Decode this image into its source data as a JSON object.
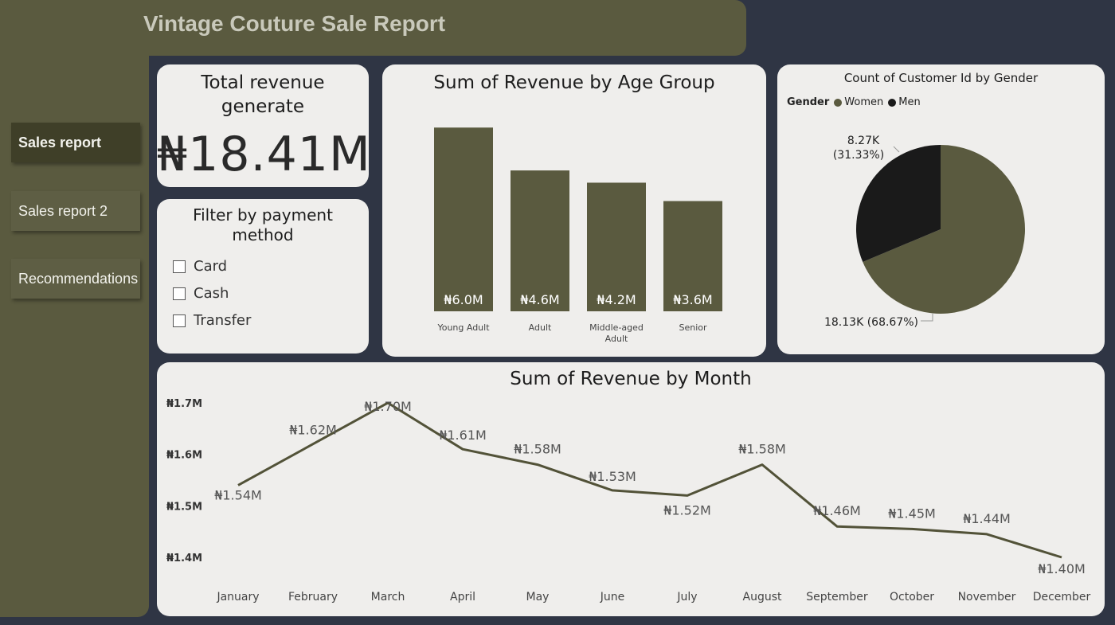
{
  "header": {
    "title": "Vintage Couture Sale Report"
  },
  "nav": [
    {
      "label": "Sales report",
      "active": true
    },
    {
      "label": "Sales report 2",
      "active": false
    },
    {
      "label": "Recommendations",
      "active": false
    }
  ],
  "kpi": {
    "label_line1": "Total revenue",
    "label_line2": "generate",
    "value": "₦18.41M"
  },
  "filter": {
    "title_line1": "Filter by payment",
    "title_line2": "method",
    "options": [
      "Card",
      "Cash",
      "Transfer"
    ]
  },
  "age_chart": {
    "title": "Sum of Revenue by Age Group",
    "chart_data": {
      "type": "bar",
      "categories": [
        "Young Adult",
        "Adult",
        "Middle-aged Adult",
        "Senior"
      ],
      "category_lines": [
        [
          "Young Adult"
        ],
        [
          "Adult"
        ],
        [
          "Middle-aged",
          "Adult"
        ],
        [
          "Senior"
        ]
      ],
      "values": [
        6.0,
        4.6,
        4.2,
        3.6
      ],
      "data_labels": [
        "₦6.0M",
        "₦4.6M",
        "₦4.2M",
        "₦3.6M"
      ],
      "ylim": [
        0,
        6.5
      ],
      "color": "#5a5a3f"
    }
  },
  "gender_chart": {
    "title": "Count of Customer Id by Gender",
    "legend_title": "Gender",
    "chart_data": {
      "type": "pie",
      "labels": [
        "Women",
        "Men"
      ],
      "values": [
        18.13,
        8.27
      ],
      "percent": [
        68.67,
        31.33
      ],
      "colors": [
        "#5a5a3f",
        "#1a1a1a"
      ],
      "data_labels": [
        "18.13K (68.67%)",
        "8.27K (31.33%)"
      ],
      "men_label_line1": "8.27K",
      "men_label_line2": "(31.33%)"
    }
  },
  "month_chart": {
    "title": "Sum of Revenue by Month",
    "chart_data": {
      "type": "line",
      "categories": [
        "January",
        "February",
        "March",
        "April",
        "May",
        "June",
        "July",
        "August",
        "September",
        "October",
        "November",
        "December"
      ],
      "values": [
        1.54,
        1.62,
        1.7,
        1.61,
        1.58,
        1.53,
        1.52,
        1.58,
        1.46,
        1.455,
        1.445,
        1.4
      ],
      "data_labels": [
        "₦1.54M",
        "₦1.62M",
        "₦1.70M",
        "₦1.61M",
        "₦1.58M",
        "₦1.53M",
        "₦1.52M",
        "₦1.58M",
        "₦1.46M",
        "₦1.45M",
        "₦1.44M",
        "₦1.40M"
      ],
      "y_ticks": [
        1.4,
        1.5,
        1.6,
        1.7
      ],
      "y_tick_labels": [
        "₦1.4M",
        "₦1.5M",
        "₦1.6M",
        "₦1.7M"
      ],
      "ylim": [
        1.4,
        1.7
      ],
      "color": "#525238"
    }
  }
}
